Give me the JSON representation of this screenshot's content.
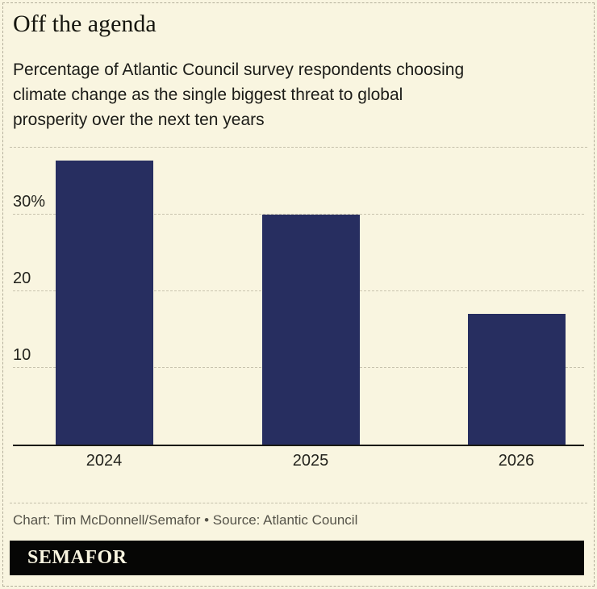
{
  "header": {
    "title": "Off the agenda",
    "subtitle": "Percentage of Atlantic Council survey respondents choosing climate change as the single biggest threat to global prosperity over the next ten years",
    "subtitle_lines": [
      "Percentage of Atlantic Council survey respondents choosing",
      "climate change as the single biggest threat to global",
      "prosperity over the next ten years"
    ]
  },
  "chart_data": {
    "type": "bar",
    "title": "Off the agenda",
    "subtitle": "Percentage of Atlantic Council survey respondents choosing climate change as the single biggest threat to global prosperity over the next ten years",
    "categories": [
      "2024",
      "2025",
      "2026"
    ],
    "values": [
      37,
      30,
      17
    ],
    "unit": "%",
    "xlabel": "",
    "ylabel": "",
    "ylim": [
      0,
      38.7
    ],
    "yticks": [
      {
        "value": 10,
        "label": "10"
      },
      {
        "value": 20,
        "label": "20"
      },
      {
        "value": 30,
        "label": "30%"
      }
    ],
    "grid": "horizontal-dashed",
    "legend": "none",
    "bar_color": "#272e60"
  },
  "footer": {
    "credit": "Chart: Tim McDonnell/Semafor • Source: Atlantic Council",
    "logo": "SEMAFOR"
  },
  "colors": {
    "background": "#f9f5e0",
    "bar": "#272e60",
    "text": "#1c1c18",
    "muted_text": "#555349",
    "grid": "#c8c3ae",
    "border": "#b3ae9a",
    "axis": "#1a1a14",
    "logo_bg": "#060605",
    "logo_text": "#f9f5e0"
  }
}
